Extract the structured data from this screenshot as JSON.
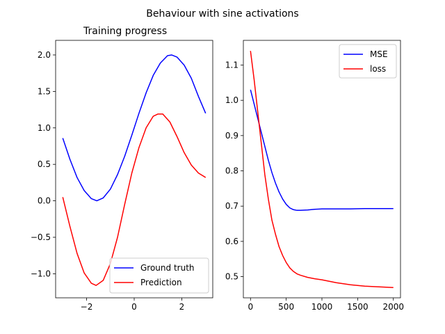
{
  "figure": {
    "suptitle": "Behaviour with sine activations"
  },
  "chart_data": [
    {
      "type": "line",
      "title": "Training progress",
      "xlabel": "",
      "ylabel": "",
      "xlim": [
        -3.3,
        3.3
      ],
      "ylim": [
        -1.33,
        2.2
      ],
      "xticks": [
        -2,
        0,
        2
      ],
      "xtick_labels": [
        "−2",
        "0",
        "2"
      ],
      "yticks": [
        -1.0,
        -0.5,
        0.0,
        0.5,
        1.0,
        1.5,
        2.0
      ],
      "ytick_labels": [
        "−1.0",
        "−0.5",
        "0.0",
        "0.5",
        "1.0",
        "1.5",
        "2.0"
      ],
      "grid": false,
      "legend": "lower-right",
      "series": [
        {
          "name": "Ground truth",
          "color": "#0000ff",
          "x": [
            -3.0,
            -2.7,
            -2.4,
            -2.1,
            -1.8,
            -1.571,
            -1.3,
            -1.0,
            -0.7,
            -0.4,
            -0.1,
            0.2,
            0.5,
            0.8,
            1.1,
            1.4,
            1.571,
            1.8,
            2.1,
            2.4,
            2.7,
            3.0
          ],
          "y": [
            0.86,
            0.57,
            0.32,
            0.14,
            0.03,
            0.0,
            0.04,
            0.16,
            0.36,
            0.61,
            0.9,
            1.2,
            1.48,
            1.72,
            1.89,
            1.99,
            2.0,
            1.97,
            1.86,
            1.68,
            1.43,
            1.2
          ]
        },
        {
          "name": "Prediction",
          "color": "#ff0000",
          "x": [
            -3.0,
            -2.7,
            -2.4,
            -2.1,
            -1.8,
            -1.6,
            -1.3,
            -1.0,
            -0.7,
            -0.4,
            -0.1,
            0.2,
            0.5,
            0.8,
            1.0,
            1.2,
            1.5,
            1.8,
            2.1,
            2.4,
            2.7,
            3.0
          ],
          "y": [
            0.05,
            -0.35,
            -0.72,
            -0.99,
            -1.13,
            -1.16,
            -1.09,
            -0.86,
            -0.5,
            -0.05,
            0.38,
            0.73,
            1.0,
            1.16,
            1.19,
            1.19,
            1.08,
            0.88,
            0.66,
            0.49,
            0.38,
            0.32
          ]
        }
      ]
    },
    {
      "type": "line",
      "title": "",
      "xlabel": "",
      "ylabel": "",
      "xlim": [
        -100,
        2100
      ],
      "ylim": [
        0.44,
        1.17
      ],
      "xticks": [
        0,
        500,
        1000,
        1500,
        2000
      ],
      "xtick_labels": [
        "0",
        "500",
        "1000",
        "1500",
        "2000"
      ],
      "yticks": [
        0.5,
        0.6,
        0.7,
        0.8,
        0.9,
        1.0,
        1.1
      ],
      "ytick_labels": [
        "0.5",
        "0.6",
        "0.7",
        "0.8",
        "0.9",
        "1.0",
        "1.1"
      ],
      "grid": false,
      "legend": "upper-right",
      "series": [
        {
          "name": "MSE",
          "color": "#0000ff",
          "x": [
            0,
            50,
            100,
            150,
            200,
            250,
            300,
            350,
            400,
            450,
            500,
            550,
            600,
            650,
            700,
            800,
            900,
            1000,
            1200,
            1400,
            1600,
            1800,
            2000
          ],
          "y": [
            1.03,
            0.99,
            0.95,
            0.91,
            0.87,
            0.83,
            0.795,
            0.765,
            0.74,
            0.72,
            0.705,
            0.695,
            0.69,
            0.688,
            0.688,
            0.689,
            0.691,
            0.692,
            0.692,
            0.692,
            0.693,
            0.693,
            0.693
          ]
        },
        {
          "name": "loss",
          "color": "#ff0000",
          "x": [
            0,
            50,
            100,
            150,
            200,
            250,
            300,
            350,
            400,
            450,
            500,
            550,
            600,
            650,
            700,
            800,
            900,
            1000,
            1200,
            1400,
            1600,
            1800,
            2000
          ],
          "y": [
            1.14,
            1.06,
            0.97,
            0.88,
            0.79,
            0.72,
            0.66,
            0.62,
            0.585,
            0.56,
            0.54,
            0.525,
            0.515,
            0.508,
            0.504,
            0.498,
            0.494,
            0.491,
            0.483,
            0.477,
            0.473,
            0.471,
            0.469
          ]
        }
      ]
    }
  ]
}
